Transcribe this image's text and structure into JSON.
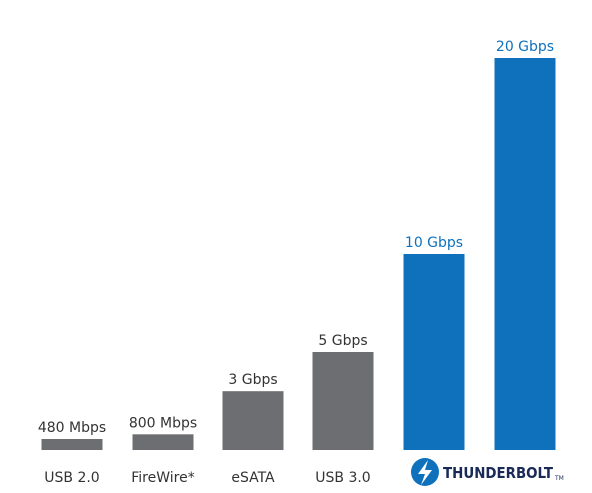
{
  "chart_data": {
    "type": "bar",
    "categories": [
      "USB 2.0",
      "FireWire*",
      "eSATA",
      "USB 3.0",
      "",
      "THUNDERBOLT"
    ],
    "values": [
      0.48,
      0.8,
      3,
      5,
      10,
      20
    ],
    "value_labels": [
      "480 Mbps",
      "800 Mbps",
      "3 Gbps",
      "5 Gbps",
      "10 Gbps",
      "20 Gbps"
    ],
    "unit": "Gbps",
    "ylim": [
      0,
      20
    ],
    "grid": false,
    "logo_category": "THUNDERBOLT",
    "logo_trademark": "TM",
    "bar_colors": [
      "#6d6e71",
      "#6d6e71",
      "#6d6e71",
      "#6d6e71",
      "#0f71bc",
      "#0f71bc"
    ],
    "label_colors": [
      "#333333",
      "#333333",
      "#333333",
      "#333333",
      "#0f71bc",
      "#0f71bc"
    ],
    "logo_colors": {
      "badge": "#0f71bc",
      "bolt": "#ffffff",
      "text": "#1a2a57"
    }
  }
}
